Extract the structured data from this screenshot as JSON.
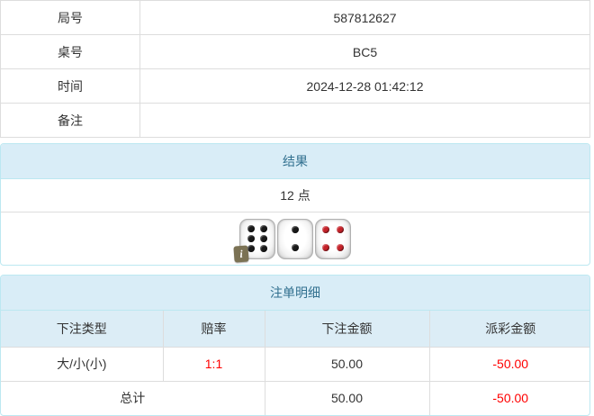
{
  "info_table": {
    "rows": [
      {
        "label": "局号",
        "value": "587812627"
      },
      {
        "label": "桌号",
        "value": "BC5"
      },
      {
        "label": "时间",
        "value": "2024-12-28 01:42:12"
      },
      {
        "label": "备注",
        "value": ""
      }
    ]
  },
  "result_panel": {
    "title": "结果",
    "points": "12 点",
    "info_badge": "i",
    "dice": [
      {
        "name": "die-six",
        "value": 6,
        "pip_color": "#1a1a1a"
      },
      {
        "name": "die-two",
        "value": 2,
        "pip_color": "#1a1a1a"
      },
      {
        "name": "die-four",
        "value": 4,
        "pip_color": "#c5232a"
      }
    ]
  },
  "bet_panel": {
    "title": "注单明细",
    "columns": [
      "下注类型",
      "赔率",
      "下注金额",
      "派彩金额"
    ],
    "rows": [
      {
        "type": "大/小(小)",
        "odds": "1:1",
        "bet": "50.00",
        "payout": "-50.00"
      }
    ],
    "total": {
      "label": "总计",
      "bet": "50.00",
      "payout": "-50.00"
    }
  },
  "colors": {
    "panel_border": "#bce8f1",
    "panel_heading_bg": "#d9edf7",
    "panel_heading_text": "#31708f",
    "table_header_bg": "#dcedf6",
    "cell_border": "#dddddd",
    "text": "#333333",
    "negative": "#ff0000"
  }
}
